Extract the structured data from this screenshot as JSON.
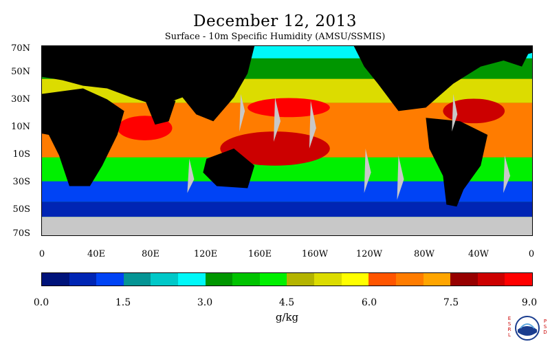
{
  "title": "December 12, 2013",
  "subtitle": "Surface - 10m Specific Humidity (AMSU/SSMIS)",
  "latitude_labels": [
    "70N",
    "50N",
    "30N",
    "10N",
    "10S",
    "30S",
    "50S",
    "70S"
  ],
  "longitude_labels": [
    "0",
    "40E",
    "80E",
    "120E",
    "160E",
    "160W",
    "120W",
    "80W",
    "40W",
    "0"
  ],
  "colorbar": {
    "colors": [
      "#00137a",
      "#0025b4",
      "#0043f5",
      "#049494",
      "#00c8c8",
      "#00f8f8",
      "#009600",
      "#00c300",
      "#00f000",
      "#b4b400",
      "#dcdc00",
      "#ffff00",
      "#ff5500",
      "#ff7c00",
      "#ffa500",
      "#960000",
      "#cc0000",
      "#ff0000"
    ],
    "tick_labels": [
      "0.0",
      "1.5",
      "3.0",
      "4.5",
      "6.0",
      "7.5",
      "9.0"
    ],
    "units": "g/kg"
  },
  "logo": {
    "left_letters": "ESRL",
    "right_letters": "PSD",
    "emblem": "noaa-emblem-icon"
  }
}
